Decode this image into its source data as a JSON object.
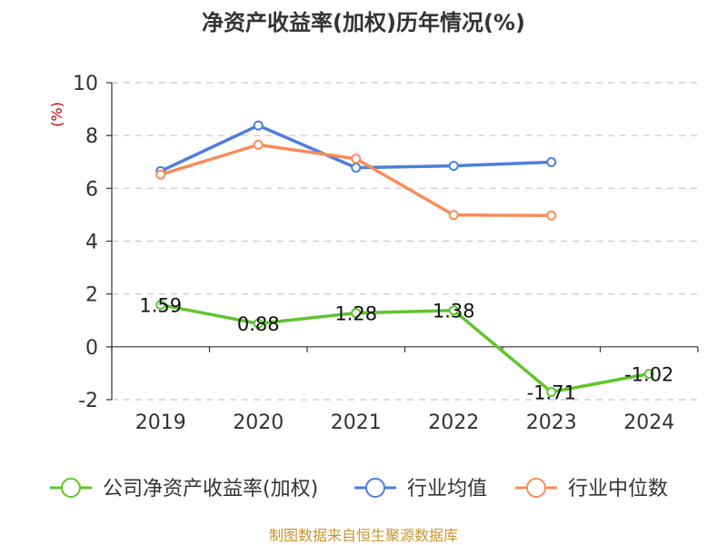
{
  "chart_data": {
    "type": "line",
    "title": "净资产收益率(加权)历年情况(%)",
    "ylabel": "(%)",
    "categories": [
      "2019",
      "2020",
      "2021",
      "2022",
      "2023",
      "2024"
    ],
    "ylim": [
      -2,
      10
    ],
    "yticks": [
      -2,
      0,
      2,
      4,
      6,
      8,
      10
    ],
    "grid": true,
    "legend_placement": "bottom",
    "series": [
      {
        "name": "公司净资产收益率(加权)",
        "color": "#5ec52d",
        "values": [
          1.59,
          0.88,
          1.28,
          1.38,
          -1.71,
          -1.02
        ],
        "labels": [
          "1.59",
          "0.88",
          "1.28",
          "1.38",
          "-1.71",
          "-1.02"
        ]
      },
      {
        "name": "行业均值",
        "color": "#4e7fdc",
        "values": [
          6.65,
          8.38,
          6.78,
          6.85,
          6.99,
          null
        ]
      },
      {
        "name": "行业中位数",
        "color": "#f88c5a",
        "values": [
          6.52,
          7.65,
          7.12,
          4.99,
          4.97,
          null
        ]
      }
    ]
  },
  "footer": "制图数据来自恒生聚源数据库"
}
